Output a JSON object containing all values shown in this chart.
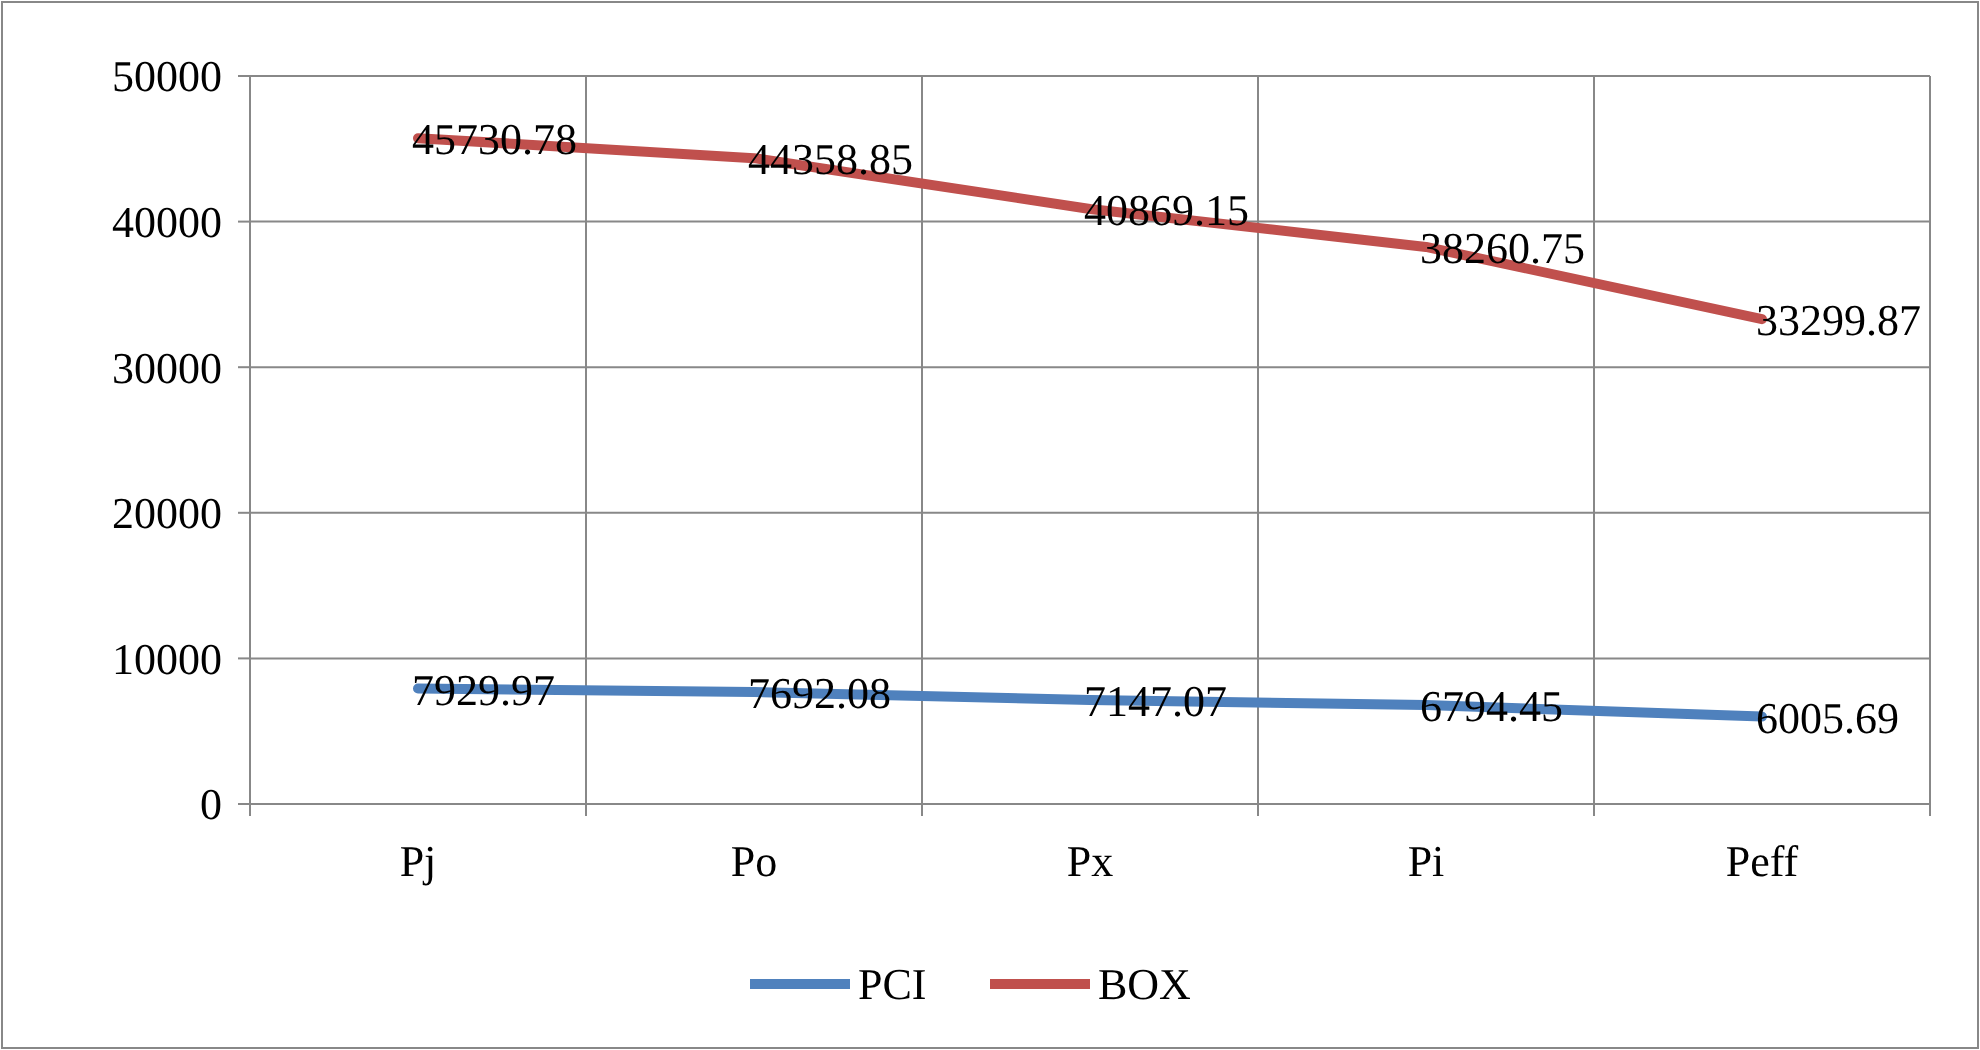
{
  "chart_data": {
    "type": "line",
    "categories": [
      "Pj",
      "Po",
      "Px",
      "Pi",
      "Peff"
    ],
    "series": [
      {
        "name": "PCI",
        "color": "#4f81bd",
        "values": [
          7929.97,
          7692.08,
          7147.07,
          6794.45,
          6005.69
        ]
      },
      {
        "name": "BOX",
        "color": "#c0504d",
        "values": [
          45730.78,
          44358.85,
          40869.15,
          38260.75,
          33299.87
        ]
      }
    ],
    "ylim": [
      0,
      50000
    ],
    "yticks": [
      0,
      10000,
      20000,
      30000,
      40000,
      50000
    ],
    "grid": true,
    "legend": "bottom",
    "data_labels": true,
    "marker": "none",
    "line_style": "solid"
  }
}
